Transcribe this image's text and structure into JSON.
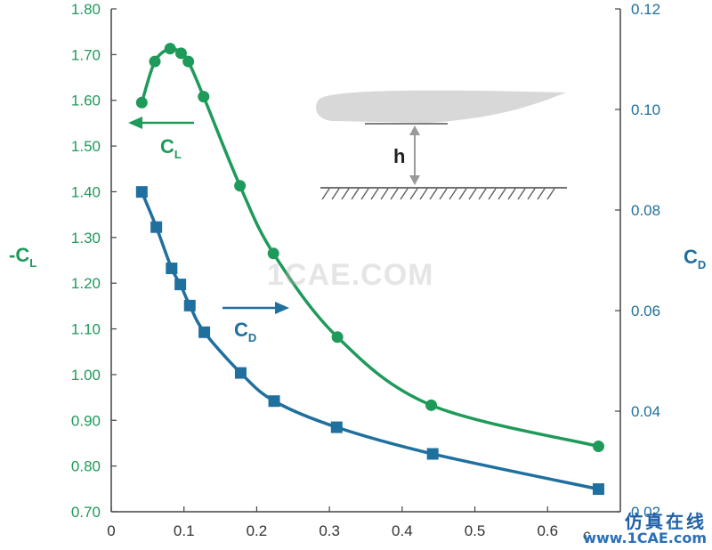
{
  "chart_data": {
    "type": "line",
    "x_ticks": [
      "0",
      "0.1",
      "0.2",
      "0.3",
      "0.4",
      "0.5",
      "0.6"
    ],
    "xlim": [
      0,
      0.7
    ],
    "xlabel": "c",
    "y_left": {
      "label_main": "-C",
      "label_sub": "L",
      "lim": [
        0.7,
        1.8
      ],
      "ticks": [
        "0.70",
        "0.80",
        "0.90",
        "1.00",
        "1.10",
        "1.20",
        "1.30",
        "1.40",
        "1.50",
        "1.60",
        "1.70",
        "1.80"
      ]
    },
    "y_right": {
      "label_main": "C",
      "label_sub": "D",
      "lim": [
        0.02,
        0.12
      ],
      "ticks": [
        "0.02",
        "0.04",
        "0.06",
        "0.08",
        "0.10",
        "0.12"
      ]
    },
    "series": [
      {
        "name": "C_L",
        "label_main": "C",
        "label_sub": "L",
        "axis": "left",
        "marker": "circle",
        "color": "#1e9a5a",
        "x": [
          0.042,
          0.06,
          0.081,
          0.096,
          0.106,
          0.127,
          0.177,
          0.223,
          0.311,
          0.44,
          0.67
        ],
        "y": [
          1.595,
          1.685,
          1.713,
          1.703,
          1.685,
          1.608,
          1.413,
          1.265,
          1.082,
          0.933,
          0.843
        ]
      },
      {
        "name": "C_D",
        "label_main": "C",
        "label_sub": "D",
        "axis": "right",
        "marker": "square",
        "color": "#1f6f9f",
        "x": [
          0.042,
          0.062,
          0.083,
          0.095,
          0.108,
          0.128,
          0.178,
          0.224,
          0.31,
          0.442,
          0.67
        ],
        "y": [
          0.0836,
          0.0766,
          0.0684,
          0.0652,
          0.061,
          0.0557,
          0.0476,
          0.042,
          0.0368,
          0.0315,
          0.0245
        ]
      }
    ],
    "inset": {
      "gap_label": "h"
    }
  },
  "watermark": "1CAE.COM",
  "site_badge": {
    "cn": "仿真在线",
    "url": "www.1CAE.com"
  }
}
